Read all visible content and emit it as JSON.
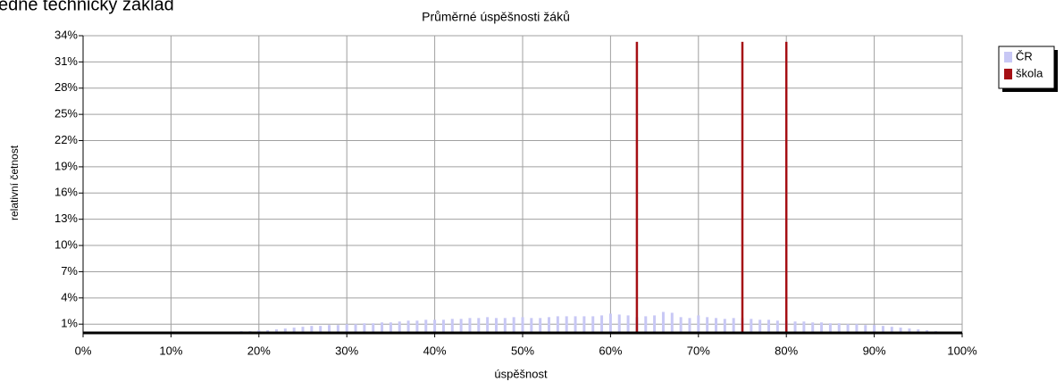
{
  "heading": "edné technický základ",
  "chart_data": {
    "type": "bar",
    "title": "Průměrné úspěšnosti žáků",
    "xlabel": "úspěšnost",
    "ylabel": "relativní četnost",
    "xlim": [
      0,
      100
    ],
    "xticks": [
      {
        "value": 0,
        "label": "0%"
      },
      {
        "value": 10,
        "label": "10%"
      },
      {
        "value": 20,
        "label": "20%"
      },
      {
        "value": 30,
        "label": "30%"
      },
      {
        "value": 40,
        "label": "40%"
      },
      {
        "value": 50,
        "label": "50%"
      },
      {
        "value": 60,
        "label": "60%"
      },
      {
        "value": 70,
        "label": "70%"
      },
      {
        "value": 80,
        "label": "80%"
      },
      {
        "value": 90,
        "label": "90%"
      },
      {
        "value": 100,
        "label": "100%"
      }
    ],
    "ylim": [
      0,
      34
    ],
    "yticks": [
      {
        "value": 1,
        "label": "1%"
      },
      {
        "value": 4,
        "label": "4%"
      },
      {
        "value": 7,
        "label": "7%"
      },
      {
        "value": 10,
        "label": "10%"
      },
      {
        "value": 13,
        "label": "13%"
      },
      {
        "value": 16,
        "label": "16%"
      },
      {
        "value": 19,
        "label": "19%"
      },
      {
        "value": 22,
        "label": "22%"
      },
      {
        "value": 25,
        "label": "25%"
      },
      {
        "value": 28,
        "label": "28%"
      },
      {
        "value": 31,
        "label": "31%"
      },
      {
        "value": 34,
        "label": "34%"
      }
    ],
    "grid": true,
    "legend": "right",
    "series": [
      {
        "name": "ČR",
        "color": "#c8c8f5",
        "x": [
          17,
          18,
          19,
          20,
          21,
          22,
          23,
          24,
          25,
          26,
          27,
          28,
          29,
          30,
          31,
          32,
          33,
          34,
          35,
          36,
          37,
          38,
          39,
          40,
          41,
          42,
          43,
          44,
          45,
          46,
          47,
          48,
          49,
          50,
          51,
          52,
          53,
          54,
          55,
          56,
          57,
          58,
          59,
          60,
          61,
          62,
          63,
          64,
          65,
          66,
          67,
          68,
          69,
          70,
          71,
          72,
          73,
          74,
          75,
          76,
          77,
          78,
          79,
          80,
          81,
          82,
          83,
          84,
          85,
          86,
          87,
          88,
          89,
          90,
          91,
          92,
          93,
          94,
          95,
          96,
          97
        ],
        "values": [
          0.1,
          0.2,
          0.2,
          0.3,
          0.3,
          0.4,
          0.5,
          0.6,
          0.7,
          0.8,
          0.8,
          0.9,
          0.9,
          1.0,
          1.0,
          1.1,
          1.1,
          1.2,
          1.2,
          1.3,
          1.4,
          1.4,
          1.5,
          1.5,
          1.5,
          1.6,
          1.6,
          1.7,
          1.7,
          1.8,
          1.7,
          1.7,
          1.8,
          1.8,
          1.7,
          1.7,
          1.8,
          1.9,
          1.9,
          1.9,
          1.9,
          1.9,
          2.0,
          2.2,
          2.1,
          2.0,
          1.8,
          1.9,
          2.0,
          2.4,
          2.3,
          1.8,
          1.7,
          2.0,
          1.8,
          1.7,
          1.6,
          1.7,
          1.7,
          1.6,
          1.5,
          1.5,
          1.4,
          1.4,
          1.3,
          1.3,
          1.2,
          1.2,
          1.1,
          1.1,
          1.0,
          1.0,
          0.9,
          0.9,
          0.8,
          0.7,
          0.6,
          0.5,
          0.4,
          0.3,
          0.2
        ]
      },
      {
        "name": "škola",
        "color": "#a50f14",
        "x": [
          63,
          75,
          80
        ],
        "values": [
          33.3,
          33.3,
          33.3
        ]
      }
    ]
  }
}
